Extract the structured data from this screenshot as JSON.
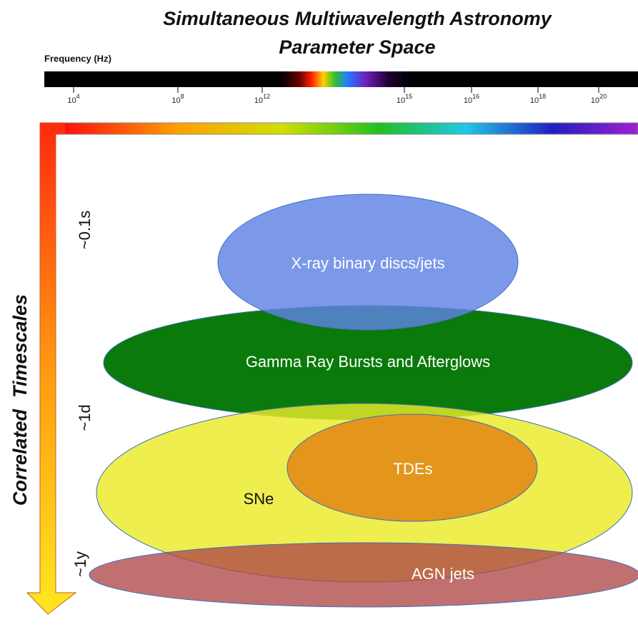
{
  "title": {
    "line1": "Simultaneous Multiwavelength Astronomy",
    "line2": "Parameter Space"
  },
  "frequency_axis": {
    "label": "Frequency (Hz)",
    "ticks": [
      {
        "base": "10",
        "exp": "4"
      },
      {
        "base": "10",
        "exp": "8"
      },
      {
        "base": "10",
        "exp": "12"
      },
      {
        "base": "10",
        "exp": "15"
      },
      {
        "base": "10",
        "exp": "16"
      },
      {
        "base": "10",
        "exp": "18"
      },
      {
        "base": "10",
        "exp": "20"
      }
    ]
  },
  "time_axis": {
    "word1": "Correlated",
    "word2": "Timescales",
    "labels": [
      "~0.1s",
      "~1d",
      "~1y"
    ]
  },
  "regions": [
    "X-ray binary discs/jets",
    "Gamma Ray Bursts and Afterglows",
    "SNe",
    "TDEs",
    "AGN jets"
  ]
}
